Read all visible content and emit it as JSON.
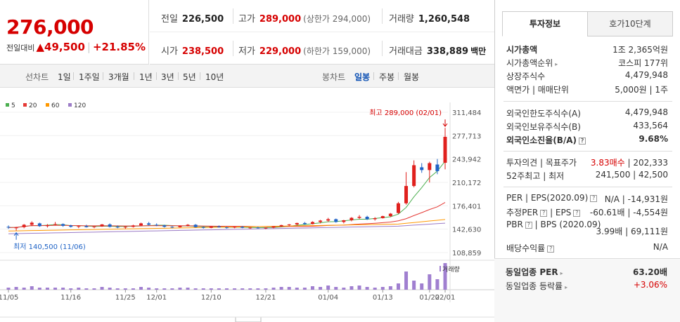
{
  "price": {
    "current": "276,000",
    "change_label": "전일대비",
    "change_arrow": "▲",
    "change_value": "49,500",
    "change_pct": "+21.85%"
  },
  "summary": {
    "prev_label": "전일",
    "prev_value": "226,500",
    "high_label": "고가",
    "high_value": "289,000",
    "high_limit": "(상한가 294,000)",
    "volume_label": "거래량",
    "volume_value": "1,260,548",
    "open_label": "시가",
    "open_value": "238,500",
    "low_label": "저가",
    "low_value": "229,000",
    "low_limit": "(하한가 159,000)",
    "amount_label": "거래대금",
    "amount_value": "338,889",
    "amount_unit": "백만"
  },
  "periods": {
    "line_label": "선차트",
    "line_items": [
      "1일",
      "1주일",
      "3개월",
      "1년",
      "3년",
      "5년",
      "10년"
    ],
    "candle_label": "봉차트",
    "candle_items": [
      "일봉",
      "주봉",
      "월봉"
    ],
    "active_candle": "일봉"
  },
  "legend": [
    {
      "label": "5",
      "color": "#4caf50"
    },
    {
      "label": "20",
      "color": "#e53935"
    },
    {
      "label": "60",
      "color": "#ff9800"
    },
    {
      "label": "120",
      "color": "#9c7cc7"
    }
  ],
  "chart_data": {
    "type": "candlestick",
    "y_ticks": [
      "311,484",
      "277,713",
      "243,942",
      "210,172",
      "176,401",
      "142,630",
      "108,859"
    ],
    "y_range": [
      108859,
      311484
    ],
    "x_ticks": [
      "11/05",
      "11/16",
      "11/25",
      "12/01",
      "12/10",
      "12/21",
      "01/04",
      "01/13",
      "01/22",
      "02/01"
    ],
    "high_annotation": "최고 289,000 (02/01)",
    "low_annotation": "최저 140,500 (11/06)",
    "volume_label": "거래량",
    "candles": [
      {
        "o": 146000,
        "h": 148000,
        "l": 143000,
        "c": 145000
      },
      {
        "o": 144000,
        "h": 146000,
        "l": 140500,
        "c": 145500
      },
      {
        "o": 145500,
        "h": 150000,
        "l": 144000,
        "c": 149000
      },
      {
        "o": 149000,
        "h": 154000,
        "l": 147000,
        "c": 152000
      },
      {
        "o": 151000,
        "h": 152000,
        "l": 146000,
        "c": 147000
      },
      {
        "o": 147000,
        "h": 150000,
        "l": 145000,
        "c": 148500
      },
      {
        "o": 149000,
        "h": 153000,
        "l": 148000,
        "c": 150000
      },
      {
        "o": 150000,
        "h": 151000,
        "l": 146000,
        "c": 147500
      },
      {
        "o": 148000,
        "h": 149000,
        "l": 145000,
        "c": 146000
      },
      {
        "o": 146000,
        "h": 148000,
        "l": 144000,
        "c": 147000
      },
      {
        "o": 147000,
        "h": 149000,
        "l": 145000,
        "c": 145500
      },
      {
        "o": 145500,
        "h": 147000,
        "l": 144000,
        "c": 146500
      },
      {
        "o": 146500,
        "h": 150000,
        "l": 146000,
        "c": 149500
      },
      {
        "o": 149500,
        "h": 151000,
        "l": 145000,
        "c": 146000
      },
      {
        "o": 146000,
        "h": 148000,
        "l": 144000,
        "c": 145000
      },
      {
        "o": 145000,
        "h": 147000,
        "l": 143000,
        "c": 146000
      },
      {
        "o": 146000,
        "h": 149000,
        "l": 145000,
        "c": 148000
      },
      {
        "o": 148000,
        "h": 152000,
        "l": 147000,
        "c": 151000
      },
      {
        "o": 151000,
        "h": 153000,
        "l": 148000,
        "c": 149000
      },
      {
        "o": 149000,
        "h": 151000,
        "l": 147000,
        "c": 148000
      },
      {
        "o": 148000,
        "h": 149000,
        "l": 145000,
        "c": 146000
      },
      {
        "o": 146000,
        "h": 147000,
        "l": 144000,
        "c": 145500
      },
      {
        "o": 145500,
        "h": 148000,
        "l": 145000,
        "c": 147500
      },
      {
        "o": 147500,
        "h": 150000,
        "l": 146500,
        "c": 149000
      },
      {
        "o": 149000,
        "h": 150000,
        "l": 145000,
        "c": 145500
      },
      {
        "o": 145500,
        "h": 146000,
        "l": 143500,
        "c": 144500
      },
      {
        "o": 144500,
        "h": 147000,
        "l": 144000,
        "c": 146500
      },
      {
        "o": 146500,
        "h": 148000,
        "l": 145000,
        "c": 145200
      },
      {
        "o": 145200,
        "h": 146000,
        "l": 143500,
        "c": 144800
      },
      {
        "o": 144800,
        "h": 146500,
        "l": 144000,
        "c": 146000
      },
      {
        "o": 146000,
        "h": 147000,
        "l": 144000,
        "c": 144500
      },
      {
        "o": 144500,
        "h": 145500,
        "l": 143000,
        "c": 145000
      },
      {
        "o": 145000,
        "h": 146000,
        "l": 143500,
        "c": 144000
      },
      {
        "o": 144000,
        "h": 145000,
        "l": 142500,
        "c": 144800
      },
      {
        "o": 144800,
        "h": 147000,
        "l": 144000,
        "c": 146800
      },
      {
        "o": 146800,
        "h": 149000,
        "l": 146000,
        "c": 148500
      },
      {
        "o": 148500,
        "h": 150000,
        "l": 147000,
        "c": 149500
      },
      {
        "o": 149500,
        "h": 152000,
        "l": 148000,
        "c": 151500
      },
      {
        "o": 151500,
        "h": 153000,
        "l": 149000,
        "c": 150000
      },
      {
        "o": 150000,
        "h": 154000,
        "l": 149500,
        "c": 153000
      },
      {
        "o": 153000,
        "h": 156000,
        "l": 151000,
        "c": 155000
      },
      {
        "o": 155000,
        "h": 159000,
        "l": 153000,
        "c": 157000
      },
      {
        "o": 157000,
        "h": 158000,
        "l": 152000,
        "c": 153000
      },
      {
        "o": 153000,
        "h": 156000,
        "l": 151000,
        "c": 155500
      },
      {
        "o": 155500,
        "h": 160000,
        "l": 154000,
        "c": 159000
      },
      {
        "o": 159000,
        "h": 163000,
        "l": 157000,
        "c": 160500
      },
      {
        "o": 160500,
        "h": 162000,
        "l": 156000,
        "c": 157000
      },
      {
        "o": 157000,
        "h": 160000,
        "l": 155000,
        "c": 158500
      },
      {
        "o": 158500,
        "h": 162000,
        "l": 158000,
        "c": 161500
      },
      {
        "o": 161500,
        "h": 166000,
        "l": 160000,
        "c": 165000
      },
      {
        "o": 166000,
        "h": 182000,
        "l": 165000,
        "c": 180000
      },
      {
        "o": 180000,
        "h": 225000,
        "l": 178000,
        "c": 205000
      },
      {
        "o": 205000,
        "h": 242000,
        "l": 203000,
        "c": 235000
      },
      {
        "o": 232000,
        "h": 238000,
        "l": 224000,
        "c": 228000
      },
      {
        "o": 228000,
        "h": 240000,
        "l": 210000,
        "c": 238000
      },
      {
        "o": 236000,
        "h": 244000,
        "l": 222000,
        "c": 226500
      },
      {
        "o": 238500,
        "h": 289000,
        "l": 229000,
        "c": 276000
      }
    ],
    "volumes": [
      3,
      4,
      3,
      5,
      3,
      3,
      3,
      3,
      2,
      3,
      2,
      2,
      4,
      3,
      2,
      2,
      2,
      4,
      3,
      2,
      2,
      2,
      3,
      3,
      2,
      2,
      2,
      2,
      2,
      2,
      2,
      2,
      2,
      2,
      3,
      4,
      4,
      3,
      3,
      5,
      4,
      6,
      4,
      3,
      5,
      6,
      4,
      3,
      4,
      5,
      9,
      26,
      13,
      9,
      22,
      15,
      38
    ]
  },
  "tabs": {
    "active": "투자정보",
    "other": "호가10단계"
  },
  "info": {
    "market_cap": {
      "k": "시가총액",
      "v": "1조 2,365억원"
    },
    "market_cap_rank": {
      "k": "시가총액순위",
      "v": "코스피 177위"
    },
    "shares": {
      "k": "상장주식수",
      "v": "4,479,948"
    },
    "face_value": {
      "k": "액면가",
      "k2": "매매단위",
      "v": "5,000원",
      "v2": "1주"
    },
    "foreign_limit": {
      "k": "외국인한도주식수(A)",
      "v": "4,479,948"
    },
    "foreign_hold": {
      "k": "외국인보유주식수(B)",
      "v": "433,564"
    },
    "foreign_rate": {
      "k": "외국인소진율(B/A)",
      "v": "9.68%"
    },
    "opinion": {
      "k": "투자의견",
      "k2": "목표주가",
      "v": "3.83매수",
      "v2": "202,333"
    },
    "w52": {
      "k": "52주최고",
      "k2": "최저",
      "v": "241,500",
      "v2": "42,500"
    },
    "per": {
      "k": "PER",
      "k2": "EPS(2020.09)",
      "v": "N/A",
      "v2": "-14,931원"
    },
    "est_per": {
      "k": "추정PER",
      "k2": "EPS",
      "v": "-60.61배",
      "v2": "-4,554원"
    },
    "pbr": {
      "k": "PBR",
      "k2": "BPS (2020.09)",
      "v": "3.99배",
      "v2": "69,111원"
    },
    "dividend": {
      "k": "배당수익률",
      "v": "N/A"
    },
    "sector_per": {
      "k": "동일업종 PER",
      "v": "63.20배"
    },
    "sector_change": {
      "k": "동일업종 등락률",
      "v": "+3.06%"
    }
  }
}
